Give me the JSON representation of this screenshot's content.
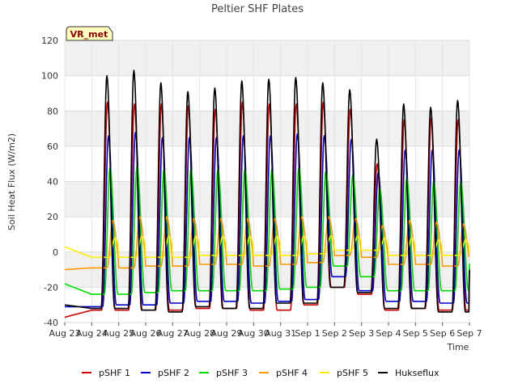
{
  "chart_data": {
    "type": "line",
    "title": "Peltier SHF Plates",
    "xlabel": "Time",
    "ylabel": "Soil Heat Flux (W/m2)",
    "badge": "VR_met",
    "ylim": [
      -40,
      120
    ],
    "yticks": [
      -40,
      -20,
      0,
      20,
      40,
      60,
      80,
      100,
      120
    ],
    "xlim": [
      "2023-08-23",
      "2023-09-07"
    ],
    "xticks": [
      "Aug 23",
      "Aug 24",
      "Aug 25",
      "Aug 26",
      "Aug 27",
      "Aug 28",
      "Aug 29",
      "Aug 30",
      "Aug 31",
      "Sep 1",
      "Sep 2",
      "Sep 3",
      "Sep 4",
      "Sep 5",
      "Sep 6",
      "Sep 7"
    ],
    "legend_position": "bottom",
    "grid": true,
    "background_bands": "alternating light gray",
    "days": [
      "Aug 23",
      "Aug 24",
      "Aug 25",
      "Aug 26",
      "Aug 27",
      "Aug 28",
      "Aug 29",
      "Aug 30",
      "Aug 31",
      "Sep 1",
      "Sep 2",
      "Sep 3",
      "Sep 4",
      "Sep 5",
      "Sep 6"
    ],
    "series": [
      {
        "name": "pSHF 1",
        "color": "#cc0000",
        "daily_max": [
          null,
          85,
          84,
          84,
          83,
          81,
          85,
          84,
          84,
          85,
          81,
          50,
          75,
          76,
          75
        ],
        "daily_min": [
          -37,
          -33,
          -33,
          -33,
          -33,
          -32,
          -32,
          -33,
          -33,
          -30,
          -20,
          -24,
          -33,
          -32,
          -33
        ]
      },
      {
        "name": "pSHF 2",
        "color": "#0000cc",
        "daily_max": [
          null,
          66,
          68,
          65,
          65,
          65,
          66,
          66,
          67,
          66,
          64,
          45,
          58,
          58,
          58
        ],
        "daily_min": [
          -31,
          -31,
          -30,
          -30,
          -29,
          -28,
          -28,
          -29,
          -28,
          -27,
          -14,
          -22,
          -28,
          -28,
          -29
        ]
      },
      {
        "name": "pSHF 3",
        "color": "#00dd00",
        "daily_max": [
          null,
          48,
          49,
          47,
          47,
          47,
          47,
          47,
          48,
          46,
          44,
          36,
          42,
          40,
          40
        ],
        "daily_min": [
          -18,
          -24,
          -24,
          -23,
          -22,
          -22,
          -22,
          -22,
          -21,
          -20,
          -8,
          -14,
          -22,
          -22,
          -22
        ]
      },
      {
        "name": "pSHF 4",
        "color": "#ff9900",
        "daily_max": [
          null,
          18,
          20,
          20,
          19,
          19,
          19,
          19,
          20,
          20,
          19,
          15,
          18,
          17,
          16
        ],
        "daily_min": [
          -10,
          -9,
          -9,
          -8,
          -8,
          -7,
          -7,
          -8,
          -7,
          -6,
          -2,
          -3,
          -7,
          -7,
          -8
        ]
      },
      {
        "name": "pSHF 5",
        "color": "#ffee00",
        "daily_max": [
          null,
          8,
          9,
          9,
          9,
          9,
          9,
          9,
          9,
          9,
          9,
          8,
          8,
          7,
          7
        ],
        "daily_min": [
          3,
          -3,
          -3,
          -3,
          -3,
          -2,
          -2,
          -2,
          -2,
          -1,
          1,
          1,
          -2,
          -2,
          -2
        ]
      },
      {
        "name": "Hukseflux",
        "color": "#000000",
        "daily_max": [
          null,
          100,
          103,
          96,
          91,
          93,
          97,
          98,
          99,
          96,
          92,
          64,
          84,
          82,
          86
        ],
        "daily_min": [
          -30,
          -32,
          -32,
          -33,
          -34,
          -31,
          -32,
          -32,
          -29,
          -29,
          -20,
          -23,
          -32,
          -32,
          -34
        ]
      }
    ]
  }
}
